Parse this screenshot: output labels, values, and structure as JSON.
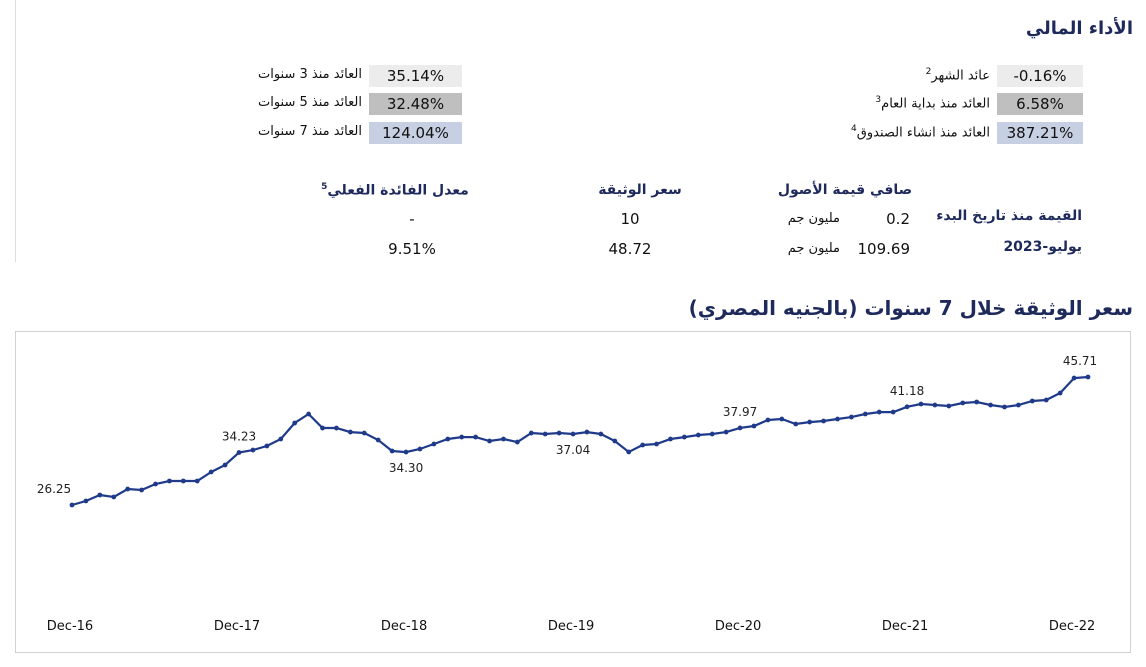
{
  "header": {
    "title": "الأداء المالي"
  },
  "returns": {
    "right": [
      {
        "label": "عائد الشهر",
        "sup": "2",
        "value": "-0.16%"
      },
      {
        "label": "العائد منذ بداية العام",
        "sup": "3",
        "value": "6.58%"
      },
      {
        "label": "العائد منذ انشاء الصندوق",
        "sup": "4",
        "value": "387.21%"
      }
    ],
    "left": [
      {
        "label": "العائد منذ 3 سنوات",
        "value": "35.14%"
      },
      {
        "label": "العائد منذ 5 سنوات",
        "value": "32.48%"
      },
      {
        "label": "العائد منذ 7 سنوات",
        "value": "124.04%"
      }
    ]
  },
  "nav": {
    "headers": [
      "صافي قيمة الأصول",
      "سعر الوثيقة",
      "معدل الفائدة الفعلي"
    ],
    "header_sup": "5",
    "rows": [
      {
        "label": "القيمة منذ تاريخ البدء",
        "nav_value": "0.2",
        "nav_unit": "مليون جم",
        "price": "10",
        "rate": "-"
      },
      {
        "label": "يوليو-2023",
        "nav_value": "109.69",
        "nav_unit": "مليون جم",
        "price": "48.72",
        "rate": "9.51%"
      }
    ]
  },
  "chart_data": {
    "type": "line",
    "title": "سعر الوثيقة خلال 7 سنوات (بالجنيه المصري)",
    "color": "#1f3a8a",
    "categories": [
      "Dec-16",
      null,
      null,
      null,
      null,
      null,
      null,
      null,
      null,
      null,
      null,
      null,
      "Dec-17",
      null,
      null,
      null,
      null,
      null,
      null,
      null,
      null,
      null,
      null,
      null,
      "Dec-18",
      null,
      null,
      null,
      null,
      null,
      null,
      null,
      null,
      null,
      null,
      null,
      "Dec-19",
      null,
      null,
      null,
      null,
      null,
      null,
      null,
      null,
      null,
      null,
      null,
      "Dec-20",
      null,
      null,
      null,
      null,
      null,
      null,
      null,
      null,
      null,
      null,
      null,
      "Dec-21",
      null,
      null,
      null,
      null,
      null,
      null,
      null,
      null,
      null,
      null,
      null,
      "Dec-22",
      null
    ],
    "values": [
      26.25,
      26.86,
      27.77,
      27.47,
      28.68,
      28.53,
      29.44,
      29.9,
      29.9,
      29.9,
      31.27,
      32.33,
      34.23,
      34.6,
      35.22,
      36.28,
      38.71,
      40.08,
      37.95,
      37.95,
      37.34,
      37.19,
      36.13,
      34.46,
      34.3,
      34.76,
      35.52,
      36.28,
      36.58,
      36.58,
      35.98,
      36.28,
      35.82,
      37.19,
      37.04,
      37.19,
      37.04,
      37.34,
      37.04,
      35.98,
      34.31,
      35.37,
      35.52,
      36.28,
      36.58,
      36.89,
      37.04,
      37.34,
      37.97,
      38.26,
      39.17,
      39.32,
      38.56,
      38.86,
      39.02,
      39.32,
      39.62,
      40.08,
      40.38,
      40.38,
      41.18,
      41.6,
      41.45,
      41.3,
      41.76,
      41.91,
      41.45,
      41.15,
      41.45,
      42.06,
      42.21,
      43.27,
      45.55,
      45.71
    ],
    "value_labels": [
      "26.25",
      null,
      null,
      null,
      null,
      null,
      null,
      null,
      null,
      null,
      null,
      null,
      "34.23",
      null,
      null,
      null,
      null,
      null,
      null,
      null,
      null,
      null,
      null,
      null,
      "34.30",
      null,
      null,
      null,
      null,
      null,
      null,
      null,
      null,
      null,
      null,
      null,
      "37.04",
      null,
      null,
      null,
      null,
      null,
      null,
      null,
      null,
      null,
      null,
      null,
      "37.97",
      null,
      null,
      null,
      null,
      null,
      null,
      null,
      null,
      null,
      null,
      null,
      "41.18",
      null,
      null,
      null,
      null,
      null,
      null,
      null,
      null,
      null,
      null,
      null,
      null,
      "45.71"
    ]
  }
}
